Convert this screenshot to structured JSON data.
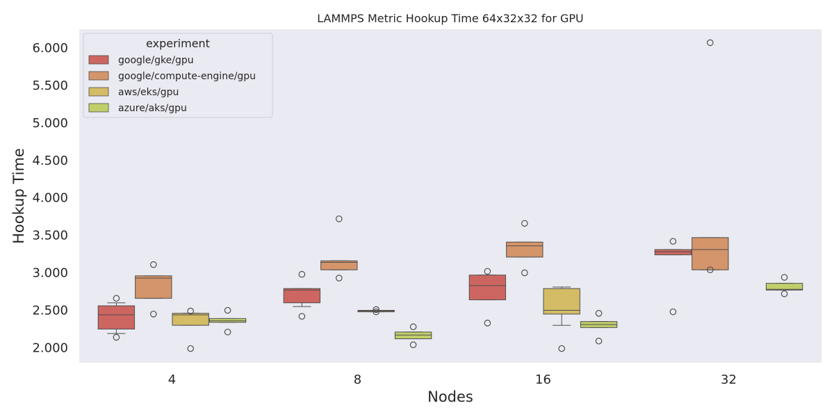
{
  "chart_data": {
    "type": "box",
    "title": "LAMMPS Metric Hookup Time 64x32x32 for GPU",
    "xlabel": "Nodes",
    "ylabel": "Hookup Time",
    "categories": [
      "4",
      "8",
      "16",
      "32"
    ],
    "ylim": [
      1.8,
      6.25
    ],
    "yticks": [
      2.0,
      2.5,
      3.0,
      3.5,
      4.0,
      4.5,
      5.0,
      5.5,
      6.0
    ],
    "ytick_labels": [
      "2.000",
      "2.500",
      "3.000",
      "3.500",
      "4.000",
      "4.500",
      "5.000",
      "5.500",
      "6.000"
    ],
    "grid": false,
    "legend": {
      "title": "experiment",
      "placement": "top-left"
    },
    "series": [
      {
        "name": "google/gke/gpu",
        "color": "#cd6661",
        "boxes": [
          {
            "category": "4",
            "q1": 2.25,
            "median": 2.44,
            "q3": 2.56,
            "whisker_low": 2.19,
            "whisker_high": 2.6,
            "outliers": [
              2.66,
              2.14
            ]
          },
          {
            "category": "8",
            "q1": 2.6,
            "median": 2.77,
            "q3": 2.79,
            "whisker_low": 2.55,
            "whisker_high": 2.79,
            "outliers": [
              2.98,
              2.42
            ]
          },
          {
            "category": "16",
            "q1": 2.64,
            "median": 2.83,
            "q3": 2.97,
            "whisker_low": 2.64,
            "whisker_high": 2.97,
            "outliers": [
              3.02,
              2.33
            ]
          },
          {
            "category": "32",
            "q1": 3.24,
            "median": 3.28,
            "q3": 3.31,
            "whisker_low": 3.24,
            "whisker_high": 3.31,
            "outliers": [
              3.42,
              2.48
            ]
          }
        ]
      },
      {
        "name": "google/compute-engine/gpu",
        "color": "#d4956a",
        "boxes": [
          {
            "category": "4",
            "q1": 2.66,
            "median": 2.93,
            "q3": 2.96,
            "whisker_low": 2.66,
            "whisker_high": 2.96,
            "outliers": [
              3.11,
              2.45
            ]
          },
          {
            "category": "8",
            "q1": 3.04,
            "median": 3.14,
            "q3": 3.16,
            "whisker_low": 3.04,
            "whisker_high": 3.16,
            "outliers": [
              3.72,
              2.93
            ]
          },
          {
            "category": "16",
            "q1": 3.21,
            "median": 3.36,
            "q3": 3.41,
            "whisker_low": 3.21,
            "whisker_high": 3.41,
            "outliers": [
              3.66,
              3.0
            ]
          },
          {
            "category": "32",
            "q1": 3.04,
            "median": 3.31,
            "q3": 3.47,
            "whisker_low": 3.04,
            "whisker_high": 3.47,
            "outliers": [
              6.07,
              3.04
            ]
          }
        ]
      },
      {
        "name": "aws/eks/gpu",
        "color": "#d4bb66",
        "boxes": [
          {
            "category": "4",
            "q1": 2.3,
            "median": 2.44,
            "q3": 2.46,
            "whisker_low": 2.3,
            "whisker_high": 2.46,
            "outliers": [
              2.49,
              1.99
            ]
          },
          {
            "category": "8",
            "q1": 2.48,
            "median": 2.49,
            "q3": 2.5,
            "whisker_low": 2.48,
            "whisker_high": 2.5,
            "outliers": [
              2.51,
              2.48
            ]
          },
          {
            "category": "16",
            "q1": 2.45,
            "median": 2.5,
            "q3": 2.79,
            "whisker_low": 2.3,
            "whisker_high": 2.81,
            "outliers": [
              1.99
            ]
          }
        ]
      },
      {
        "name": "azure/aks/gpu",
        "color": "#c1cf6b",
        "boxes": [
          {
            "category": "4",
            "q1": 2.34,
            "median": 2.36,
            "q3": 2.39,
            "whisker_low": 2.34,
            "whisker_high": 2.39,
            "outliers": [
              2.5,
              2.21
            ]
          },
          {
            "category": "8",
            "q1": 2.12,
            "median": 2.17,
            "q3": 2.21,
            "whisker_low": 2.12,
            "whisker_high": 2.21,
            "outliers": [
              2.28,
              2.04
            ]
          },
          {
            "category": "16",
            "q1": 2.27,
            "median": 2.31,
            "q3": 2.35,
            "whisker_low": 2.27,
            "whisker_high": 2.35,
            "outliers": [
              2.46,
              2.09
            ]
          },
          {
            "category": "32",
            "q1": 2.77,
            "median": 2.78,
            "q3": 2.86,
            "whisker_low": 2.77,
            "whisker_high": 2.86,
            "outliers": [
              2.94,
              2.72
            ]
          }
        ]
      }
    ]
  }
}
